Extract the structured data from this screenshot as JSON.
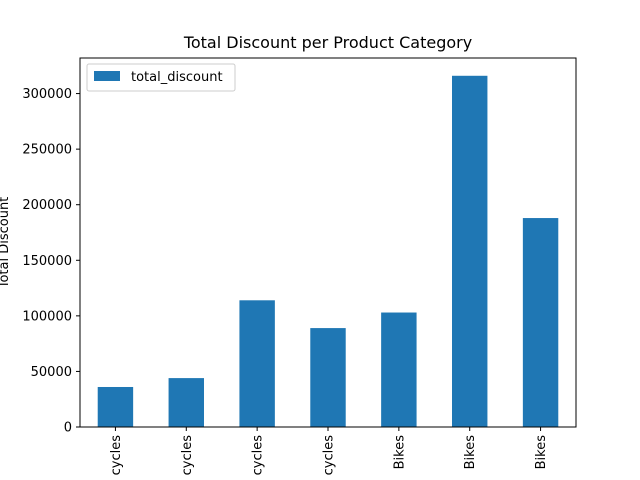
{
  "chart_data": {
    "type": "bar",
    "title": "Total Discount per Product Category",
    "xlabel": "",
    "ylabel": "Total Discount",
    "categories": [
      "cycles",
      "cycles",
      "cycles",
      "cycles",
      "Bikes",
      "Bikes",
      "Bikes"
    ],
    "series": [
      {
        "name": "total_discount",
        "color": "#1f77b4",
        "values": [
          36000,
          44000,
          114000,
          89000,
          103000,
          316000,
          188000
        ]
      }
    ],
    "ylim": [
      0,
      332000
    ],
    "yticks": [
      0,
      50000,
      100000,
      150000,
      200000,
      250000,
      300000
    ],
    "legend": "top-left",
    "grid": false
  }
}
